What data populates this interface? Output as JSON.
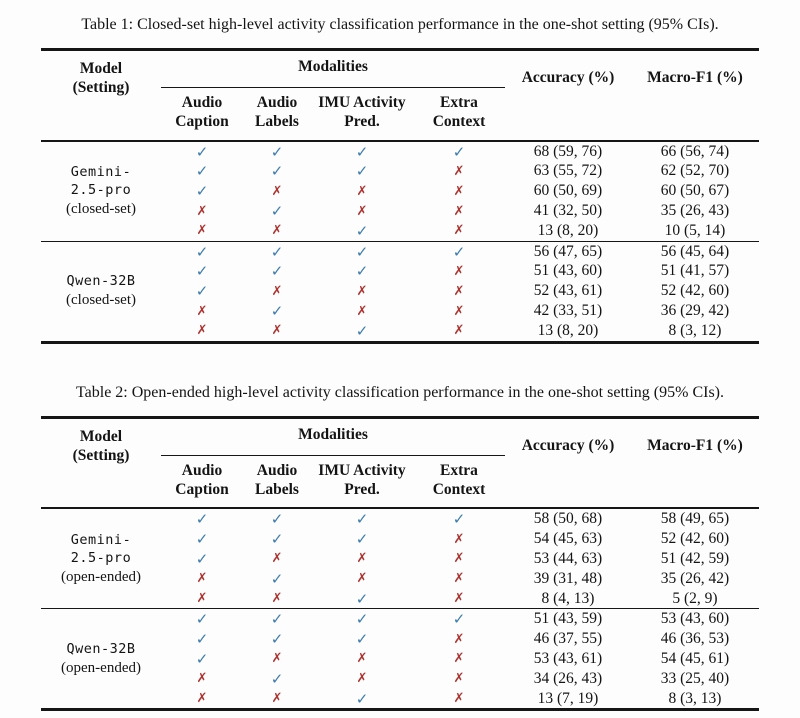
{
  "colors": {
    "check_blue": "#3e7cae",
    "cross_red": "#ad3430",
    "rule_black": "#161616",
    "background": "#fdfdfd"
  },
  "glyphs": {
    "check": "✓",
    "cross": "✗"
  },
  "header": {
    "model": "Model",
    "setting": "(Setting)",
    "modalities": "Modalities",
    "subcols": [
      {
        "l1": "Audio",
        "l2": "Caption"
      },
      {
        "l1": "Audio",
        "l2": "Labels"
      },
      {
        "l1": "IMU Activity",
        "l2": "Pred."
      },
      {
        "l1": "Extra",
        "l2": "Context"
      }
    ],
    "accuracy": "Accuracy (%)",
    "macro_f1": "Macro-F1 (%)"
  },
  "tables": [
    {
      "caption": "Table 1: Closed-set high-level activity classification performance in the one-shot setting (95% CIs).",
      "groups": [
        {
          "model_lines": [
            "Gemini-",
            "2.5-pro"
          ],
          "setting": "(closed-set)",
          "rows": [
            {
              "marks": [
                true,
                true,
                true,
                true
              ],
              "accuracy": "68 (59, 76)",
              "macro_f1": "66 (56, 74)"
            },
            {
              "marks": [
                true,
                true,
                true,
                false
              ],
              "accuracy": "63 (55, 72)",
              "macro_f1": "62 (52, 70)"
            },
            {
              "marks": [
                true,
                false,
                false,
                false
              ],
              "accuracy": "60 (50, 69)",
              "macro_f1": "60 (50, 67)"
            },
            {
              "marks": [
                false,
                true,
                false,
                false
              ],
              "accuracy": "41 (32, 50)",
              "macro_f1": "35 (26, 43)"
            },
            {
              "marks": [
                false,
                false,
                true,
                false
              ],
              "accuracy": "13 (8, 20)",
              "macro_f1": "10 (5, 14)"
            }
          ]
        },
        {
          "model_lines": [
            "Qwen-32B"
          ],
          "setting": "(closed-set)",
          "rows": [
            {
              "marks": [
                true,
                true,
                true,
                true
              ],
              "accuracy": "56 (47, 65)",
              "macro_f1": "56 (45, 64)"
            },
            {
              "marks": [
                true,
                true,
                true,
                false
              ],
              "accuracy": "51 (43, 60)",
              "macro_f1": "51 (41, 57)"
            },
            {
              "marks": [
                true,
                false,
                false,
                false
              ],
              "accuracy": "52 (43, 61)",
              "macro_f1": "52 (42, 60)"
            },
            {
              "marks": [
                false,
                true,
                false,
                false
              ],
              "accuracy": "42 (33, 51)",
              "macro_f1": "36 (29, 42)"
            },
            {
              "marks": [
                false,
                false,
                true,
                false
              ],
              "accuracy": "13 (8, 20)",
              "macro_f1": "8 (3, 12)"
            }
          ]
        }
      ]
    },
    {
      "caption": "Table 2: Open-ended high-level activity classification performance in the one-shot setting (95% CIs).",
      "groups": [
        {
          "model_lines": [
            "Gemini-",
            "2.5-pro"
          ],
          "setting": "(open-ended)",
          "rows": [
            {
              "marks": [
                true,
                true,
                true,
                true
              ],
              "accuracy": "58 (50, 68)",
              "macro_f1": "58 (49, 65)"
            },
            {
              "marks": [
                true,
                true,
                true,
                false
              ],
              "accuracy": "54 (45, 63)",
              "macro_f1": "52 (42, 60)"
            },
            {
              "marks": [
                true,
                false,
                false,
                false
              ],
              "accuracy": "53 (44, 63)",
              "macro_f1": "51 (42, 59)"
            },
            {
              "marks": [
                false,
                true,
                false,
                false
              ],
              "accuracy": "39 (31, 48)",
              "macro_f1": "35 (26, 42)"
            },
            {
              "marks": [
                false,
                false,
                true,
                false
              ],
              "accuracy": "8 (4, 13)",
              "macro_f1": "5 (2, 9)"
            }
          ]
        },
        {
          "model_lines": [
            "Qwen-32B"
          ],
          "setting": "(open-ended)",
          "rows": [
            {
              "marks": [
                true,
                true,
                true,
                true
              ],
              "accuracy": "51 (43, 59)",
              "macro_f1": "53 (43, 60)"
            },
            {
              "marks": [
                true,
                true,
                true,
                false
              ],
              "accuracy": "46 (37, 55)",
              "macro_f1": "46 (36, 53)"
            },
            {
              "marks": [
                true,
                false,
                false,
                false
              ],
              "accuracy": "53 (43, 61)",
              "macro_f1": "54 (45, 61)"
            },
            {
              "marks": [
                false,
                true,
                false,
                false
              ],
              "accuracy": "34 (26, 43)",
              "macro_f1": "33 (25, 40)"
            },
            {
              "marks": [
                false,
                false,
                true,
                false
              ],
              "accuracy": "13 (7, 19)",
              "macro_f1": "8 (3, 13)"
            }
          ]
        }
      ]
    }
  ]
}
